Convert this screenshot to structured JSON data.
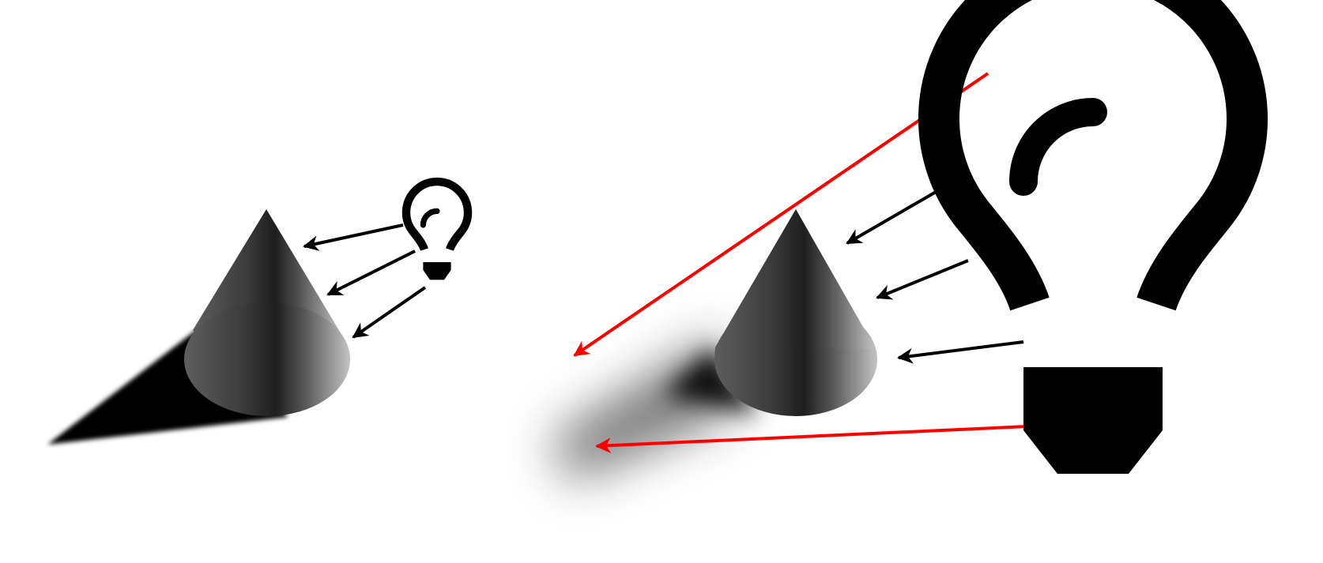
{
  "colors": {
    "background": "#ffffff",
    "light_ray": "#000000",
    "highlighted_ray": "#ff0000",
    "shadow": "#000000",
    "cone_dark": "#1e1e1e",
    "cone_light": "#c4c4c4",
    "bulb": "#000000"
  },
  "scenes": [
    {
      "id": "small-point-light",
      "light_icon": "lightbulb-icon",
      "light_source_size": "small",
      "ray_count": 3,
      "highlighted_ray_count": 0,
      "shadow": "hard"
    },
    {
      "id": "large-area-light",
      "light_icon": "lightbulb-icon",
      "light_source_size": "large",
      "ray_count": 5,
      "highlighted_ray_count": 2,
      "shadow": "soft"
    }
  ]
}
